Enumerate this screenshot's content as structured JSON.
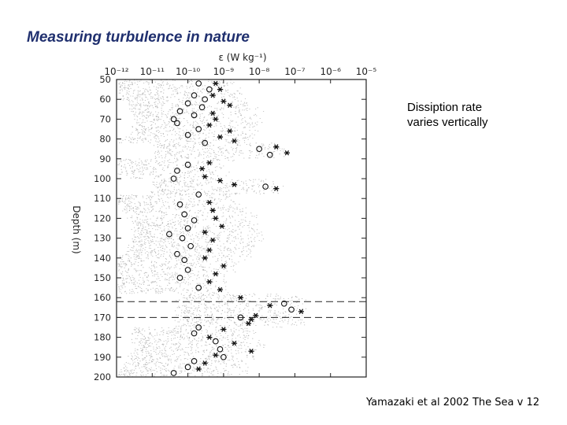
{
  "slide": {
    "title": "Measuring turbulence in nature",
    "note_line1": "Dissiption rate",
    "note_line2": "varies vertically",
    "citation": "Yamazaki et al 2002 The Sea v 12"
  },
  "chart_data": {
    "type": "scatter",
    "title": "",
    "xlabel": "ε (W kg⁻¹)",
    "ylabel": "Depth (m)",
    "x_scale": "log",
    "x_tick_exponents": [
      -12,
      -11,
      -10,
      -9,
      -8,
      -7,
      -6,
      -5
    ],
    "x_tick_labels": [
      "10⁻¹²",
      "10⁻¹¹",
      "10⁻¹⁰",
      "10⁻⁹",
      "10⁻⁸",
      "10⁻⁷",
      "10⁻⁶",
      "10⁻⁵"
    ],
    "xlim": [
      1e-12,
      1e-05
    ],
    "ylim": [
      200,
      50
    ],
    "y_ticks": [
      50,
      60,
      70,
      80,
      90,
      100,
      110,
      120,
      130,
      140,
      150,
      160,
      170,
      180,
      190,
      200
    ],
    "dashed_depths": [
      162,
      170
    ],
    "grid": false,
    "series": [
      {
        "marker": "circle",
        "points": [
          [
            52,
            2e-10
          ],
          [
            55,
            4e-10
          ],
          [
            58,
            1.5e-10
          ],
          [
            60,
            3e-10
          ],
          [
            62,
            1e-10
          ],
          [
            64,
            2.5e-10
          ],
          [
            66,
            6e-11
          ],
          [
            68,
            1.5e-10
          ],
          [
            70,
            4e-11
          ],
          [
            72,
            5e-11
          ],
          [
            75,
            2e-10
          ],
          [
            78,
            1e-10
          ],
          [
            82,
            3e-10
          ],
          [
            85,
            1e-08
          ],
          [
            88,
            2e-08
          ],
          [
            93,
            1e-10
          ],
          [
            96,
            5e-11
          ],
          [
            100,
            4e-11
          ],
          [
            104,
            1.5e-08
          ],
          [
            108,
            2e-10
          ],
          [
            113,
            6e-11
          ],
          [
            118,
            8e-11
          ],
          [
            121,
            1.5e-10
          ],
          [
            125,
            1e-10
          ],
          [
            128,
            3e-11
          ],
          [
            130,
            7e-11
          ],
          [
            134,
            1.2e-10
          ],
          [
            138,
            5e-11
          ],
          [
            141,
            8e-11
          ],
          [
            146,
            1e-10
          ],
          [
            150,
            6e-11
          ],
          [
            155,
            2e-10
          ],
          [
            163,
            5e-08
          ],
          [
            166,
            8e-08
          ],
          [
            170,
            3e-09
          ],
          [
            175,
            2e-10
          ],
          [
            178,
            1.5e-10
          ],
          [
            182,
            6e-10
          ],
          [
            186,
            8e-10
          ],
          [
            190,
            1e-09
          ],
          [
            192,
            1.5e-10
          ],
          [
            195,
            1e-10
          ],
          [
            198,
            4e-11
          ]
        ]
      },
      {
        "marker": "asterisk",
        "points": [
          [
            52,
            6e-10
          ],
          [
            55,
            8e-10
          ],
          [
            58,
            5e-10
          ],
          [
            61,
            1e-09
          ],
          [
            63,
            1.5e-09
          ],
          [
            67,
            5e-10
          ],
          [
            70,
            6e-10
          ],
          [
            73,
            4e-10
          ],
          [
            76,
            1.5e-09
          ],
          [
            79,
            8e-10
          ],
          [
            81,
            2e-09
          ],
          [
            84,
            3e-08
          ],
          [
            87,
            6e-08
          ],
          [
            92,
            4e-10
          ],
          [
            95,
            2.5e-10
          ],
          [
            99,
            3e-10
          ],
          [
            101,
            8e-10
          ],
          [
            103,
            2e-09
          ],
          [
            105,
            3e-08
          ],
          [
            112,
            4e-10
          ],
          [
            116,
            5e-10
          ],
          [
            120,
            6e-10
          ],
          [
            124,
            9e-10
          ],
          [
            127,
            3e-10
          ],
          [
            131,
            5e-10
          ],
          [
            136,
            4e-10
          ],
          [
            140,
            3e-10
          ],
          [
            144,
            1e-09
          ],
          [
            148,
            6e-10
          ],
          [
            152,
            4e-10
          ],
          [
            156,
            8e-10
          ],
          [
            160,
            3e-09
          ],
          [
            164,
            2e-08
          ],
          [
            167,
            1.5e-07
          ],
          [
            169,
            8e-09
          ],
          [
            171,
            6e-09
          ],
          [
            173,
            5e-09
          ],
          [
            176,
            1e-09
          ],
          [
            180,
            4e-10
          ],
          [
            183,
            2e-09
          ],
          [
            187,
            6e-09
          ],
          [
            189,
            6e-10
          ],
          [
            193,
            3e-10
          ],
          [
            196,
            2e-10
          ]
        ]
      }
    ]
  }
}
